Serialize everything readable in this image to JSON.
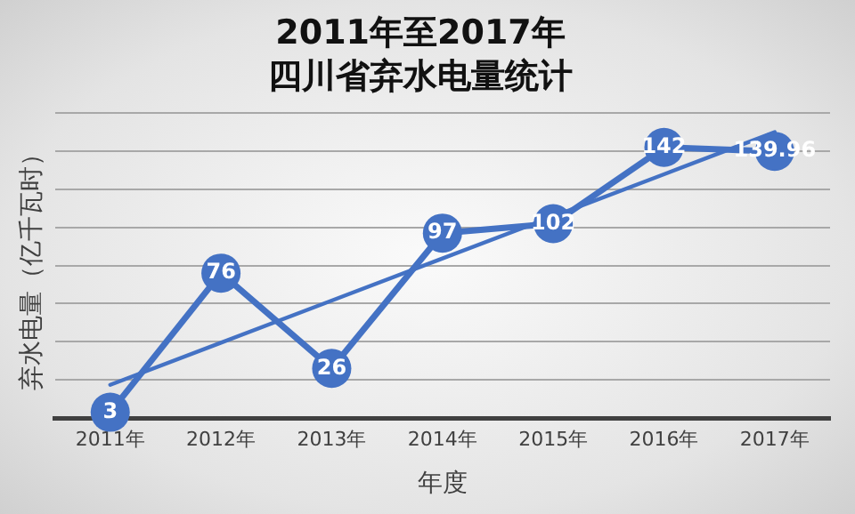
{
  "chart_data": {
    "type": "line",
    "title": "2011年至2017年",
    "subtitle": "四川省弃水电量统计",
    "xlabel": "年度",
    "ylabel": "弃水电量（亿千瓦时）",
    "categories": [
      "2011年",
      "2012年",
      "2013年",
      "2014年",
      "2015年",
      "2016年",
      "2017年"
    ],
    "series": [
      {
        "type": "line",
        "color": "#4472c4",
        "values": [
          3,
          76,
          26,
          97,
          102,
          142,
          139.96
        ],
        "value_labels": [
          "3",
          "76",
          "26",
          "97",
          "102",
          "142",
          "139.96"
        ],
        "marker": "circle"
      },
      {
        "type": "line",
        "color": "#4472c4",
        "values": [
          17.4,
          39.5,
          61.6,
          83.7,
          105.8,
          127.9,
          150.0
        ],
        "marker": "none"
      }
    ],
    "ylim": [
      0,
      160
    ],
    "yticks": [
      {
        "value": 0,
        "label": null
      },
      {
        "value": 20,
        "label": null
      },
      {
        "value": 40,
        "label": null
      },
      {
        "value": 60,
        "label": null
      },
      {
        "value": 80,
        "label": null
      },
      {
        "value": 100,
        "label": null
      },
      {
        "value": 120,
        "label": null
      },
      {
        "value": 140,
        "label": null
      },
      {
        "value": 160,
        "label": null
      }
    ],
    "tick_labels": "x",
    "grid": "y",
    "legend": false,
    "line_style": "solid"
  }
}
